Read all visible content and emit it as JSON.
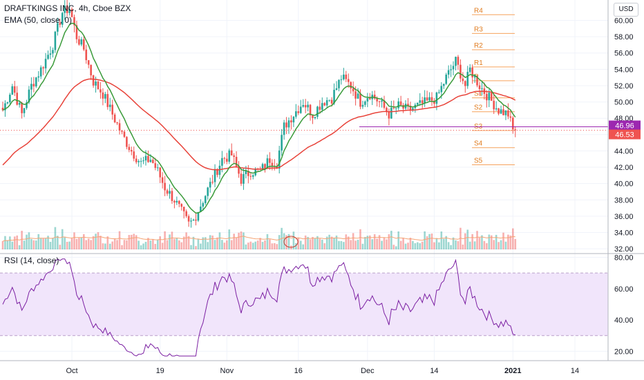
{
  "header": {
    "symbol_line": "DRAFTKINGS INC, 4h, Cboe BZX",
    "indicator_line": "EMA (50, close, 0)",
    "currency_button": "USD"
  },
  "rsi_header": "RSI (14, close)",
  "colors": {
    "up": "#26a69a",
    "down": "#ef5350",
    "ema_long": "#e8433a",
    "ema_short": "#3a9b3a",
    "rsi": "#7b1fa2",
    "rsi_band": "#f1e5fb",
    "pivot": "#f6a25c",
    "level_line": "#9c27b0",
    "volume_ma": "#f5a474"
  },
  "chart_data": [
    {
      "type": "candlestick",
      "title": "DRAFTKINGS INC, 4h, Cboe BZX",
      "ylim": [
        31.5,
        62.5
      ],
      "y_ticks": [
        "32.00",
        "34.00",
        "36.00",
        "38.00",
        "40.00",
        "42.00",
        "44.00",
        "46.00",
        "48.00",
        "50.00",
        "52.00",
        "54.00",
        "56.00",
        "58.00",
        "60.00"
      ],
      "x_ticks": [
        "Oct",
        "19",
        "Nov",
        "16",
        "Dec",
        "14",
        "2021",
        "14"
      ],
      "close_anchors": [
        [
          0,
          49
        ],
        [
          4,
          52
        ],
        [
          8,
          48.5
        ],
        [
          12,
          52
        ],
        [
          16,
          54
        ],
        [
          21,
          57
        ],
        [
          25,
          61
        ],
        [
          28,
          61.5
        ],
        [
          31,
          58
        ],
        [
          34,
          56.5
        ],
        [
          38,
          52.5
        ],
        [
          42,
          51
        ],
        [
          46,
          48.5
        ],
        [
          50,
          46
        ],
        [
          54,
          44
        ],
        [
          58,
          42.5
        ],
        [
          62,
          43
        ],
        [
          65,
          41.5
        ],
        [
          68,
          39.5
        ],
        [
          72,
          38
        ],
        [
          76,
          36
        ],
        [
          78,
          35
        ],
        [
          80,
          35.5
        ],
        [
          84,
          38
        ],
        [
          88,
          40.5
        ],
        [
          92,
          43
        ],
        [
          96,
          43.5
        ],
        [
          100,
          40.5
        ],
        [
          104,
          41.5
        ],
        [
          108,
          41.5
        ],
        [
          112,
          43
        ],
        [
          115,
          42.5
        ],
        [
          118,
          47
        ],
        [
          122,
          48.5
        ],
        [
          126,
          50
        ],
        [
          130,
          48.5
        ],
        [
          134,
          50
        ],
        [
          138,
          50.5
        ],
        [
          142,
          53
        ],
        [
          146,
          52
        ],
        [
          150,
          50
        ],
        [
          154,
          51
        ],
        [
          158,
          50
        ],
        [
          162,
          48.5
        ],
        [
          166,
          49.5
        ],
        [
          170,
          49
        ],
        [
          174,
          49.5
        ],
        [
          178,
          50
        ],
        [
          182,
          50.5
        ],
        [
          186,
          53
        ],
        [
          190,
          55
        ],
        [
          194,
          52
        ],
        [
          196,
          54
        ],
        [
          200,
          52
        ],
        [
          204,
          50.5
        ],
        [
          208,
          49
        ],
        [
          212,
          48.5
        ],
        [
          214,
          46.5
        ]
      ],
      "pivot_levels": [
        {
          "label": "R4",
          "value": 60.7
        },
        {
          "label": "R3",
          "value": 58.4
        },
        {
          "label": "R2",
          "value": 56.4
        },
        {
          "label": "R1",
          "value": 54.3
        },
        {
          "label": "P",
          "value": 52.6
        },
        {
          "label": "S1",
          "value": 50.5
        },
        {
          "label": "S2",
          "value": 48.8
        },
        {
          "label": "S3",
          "value": 46.5
        },
        {
          "label": "S4",
          "value": 44.4
        },
        {
          "label": "S5",
          "value": 42.3
        }
      ],
      "price_labels": [
        {
          "text": "46.96",
          "value": 46.96,
          "color": "#9c27b0"
        },
        {
          "text": "46.53",
          "value": 46.53,
          "color": "#ef5350"
        }
      ],
      "series": [
        {
          "name": "EMA (50, close, 0)",
          "kind": "ema",
          "period": 50,
          "color": "#e8433a"
        },
        {
          "kind": "ema",
          "period": 9,
          "color": "#3a9b3a"
        }
      ]
    },
    {
      "type": "line",
      "title": "RSI (14, close)",
      "ylim": [
        14,
        82
      ],
      "y_ticks": [
        "20.00",
        "40.00",
        "60.00",
        "80.00"
      ],
      "band": [
        30,
        70
      ],
      "series": [
        {
          "name": "RSI (14, close)",
          "color": "#7b1fa2"
        }
      ]
    }
  ]
}
